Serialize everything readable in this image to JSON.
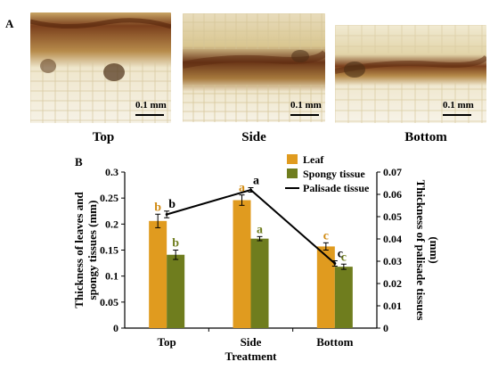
{
  "panel_a": {
    "letter": "A",
    "images": [
      {
        "caption": "Top",
        "scale_label": "0.1 mm"
      },
      {
        "caption": "Side",
        "scale_label": "0.1 mm"
      },
      {
        "caption": "Bottom",
        "scale_label": "0.1 mm"
      }
    ],
    "colors": {
      "tissue_dark": "#6e3a1a",
      "tissue_mid": "#b58a4a",
      "tissue_light": "#f4f0e2"
    }
  },
  "panel_b": {
    "letter": "B"
  },
  "chart_data": {
    "type": "bar",
    "title": "",
    "xlabel": "Treatment",
    "ylabel": "Thickness of leaves and spongy tissues (mm)",
    "y2label": "Thickness of palisade tissues (mm)",
    "categories": [
      "Top",
      "Side",
      "Bottom"
    ],
    "ylim": [
      0,
      0.3
    ],
    "y2lim": [
      0,
      0.07
    ],
    "yticks": [
      "0",
      "0.05",
      "0.1",
      "0.15",
      "0.2",
      "0.25",
      "0.3"
    ],
    "y2ticks": [
      "0",
      "0.01",
      "0.02",
      "0.03",
      "0.04",
      "0.05",
      "0.06",
      "0.07"
    ],
    "legend_position": "top-right",
    "series": [
      {
        "name": "Leaf",
        "kind": "bar",
        "axis": "left",
        "color": "#e09b1f",
        "label_color": "#d08a12",
        "values": [
          0.206,
          0.246,
          0.157
        ],
        "errors": [
          0.013,
          0.01,
          0.007
        ],
        "letters": [
          "b",
          "a",
          "c"
        ]
      },
      {
        "name": "Spongy tissue",
        "kind": "bar",
        "axis": "left",
        "color": "#6f7d1e",
        "label_color": "#6f7d1e",
        "values": [
          0.141,
          0.172,
          0.118
        ],
        "errors": [
          0.009,
          0.004,
          0.005
        ],
        "letters": [
          "b",
          "a",
          "c"
        ]
      },
      {
        "name": "Palisade tissue",
        "kind": "line",
        "axis": "right",
        "color": "#000000",
        "label_color": "#000000",
        "values": [
          0.051,
          0.062,
          0.029
        ],
        "errors": [
          0.0015,
          0.001,
          0.0012
        ],
        "letters": [
          "b",
          "a",
          "c"
        ]
      }
    ]
  }
}
